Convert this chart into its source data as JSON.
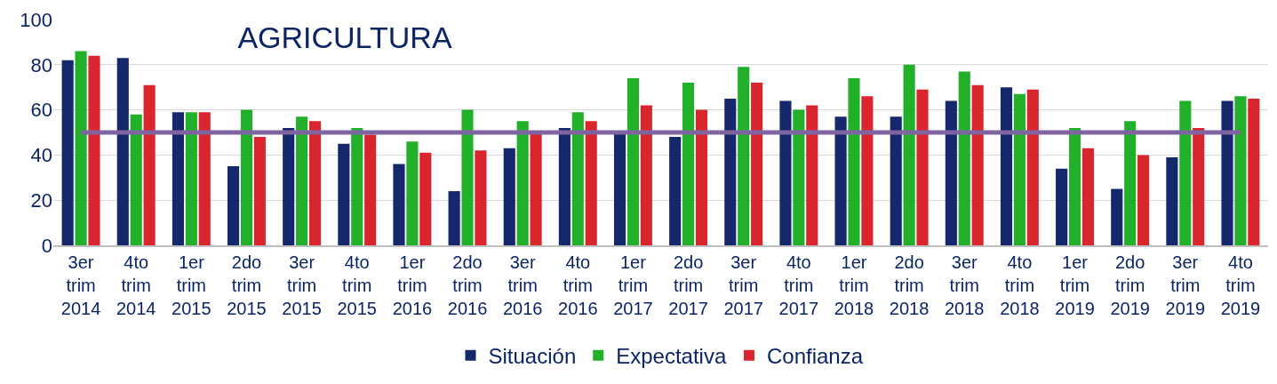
{
  "chart_data": {
    "type": "bar",
    "title": "AGRICULTURA",
    "categories": [
      "3er trim 2014",
      "4to trim 2014",
      "1er trim 2015",
      "2do trim 2015",
      "3er trim 2015",
      "4to trim 2015",
      "1er trim 2016",
      "2do trim 2016",
      "3er trim 2016",
      "4to trim 2016",
      "1er trim 2017",
      "2do trim 2017",
      "3er trim 2017",
      "4to trim 2017",
      "1er trim 2018",
      "2do trim 2018",
      "3er trim 2018",
      "4to trim 2018",
      "1er trim 2019",
      "2do trim 2019",
      "3er trim 2019",
      "4to trim 2019"
    ],
    "series": [
      {
        "name": "Situación",
        "color": "#14286b",
        "values": [
          82,
          83,
          59,
          35,
          52,
          45,
          36,
          24,
          43,
          52,
          50,
          48,
          65,
          64,
          57,
          57,
          64,
          70,
          34,
          25,
          39,
          64
        ]
      },
      {
        "name": "Expectativa",
        "color": "#22b02a",
        "values": [
          86,
          58,
          59,
          60,
          57,
          52,
          46,
          60,
          55,
          59,
          74,
          72,
          79,
          60,
          74,
          80,
          77,
          67,
          52,
          55,
          64,
          66
        ]
      },
      {
        "name": "Confianza",
        "color": "#d9262e",
        "values": [
          84,
          71,
          59,
          48,
          55,
          49,
          41,
          42,
          50,
          55,
          62,
          60,
          72,
          62,
          66,
          69,
          71,
          69,
          43,
          40,
          52,
          65
        ]
      }
    ],
    "ylim": [
      0,
      100
    ],
    "yticks": [
      0,
      20,
      40,
      60,
      80,
      100
    ],
    "grid": "y",
    "legend": "bottom",
    "ref_lines": [
      {
        "axis": "y",
        "value": 50,
        "color": "#8064a2"
      }
    ]
  }
}
